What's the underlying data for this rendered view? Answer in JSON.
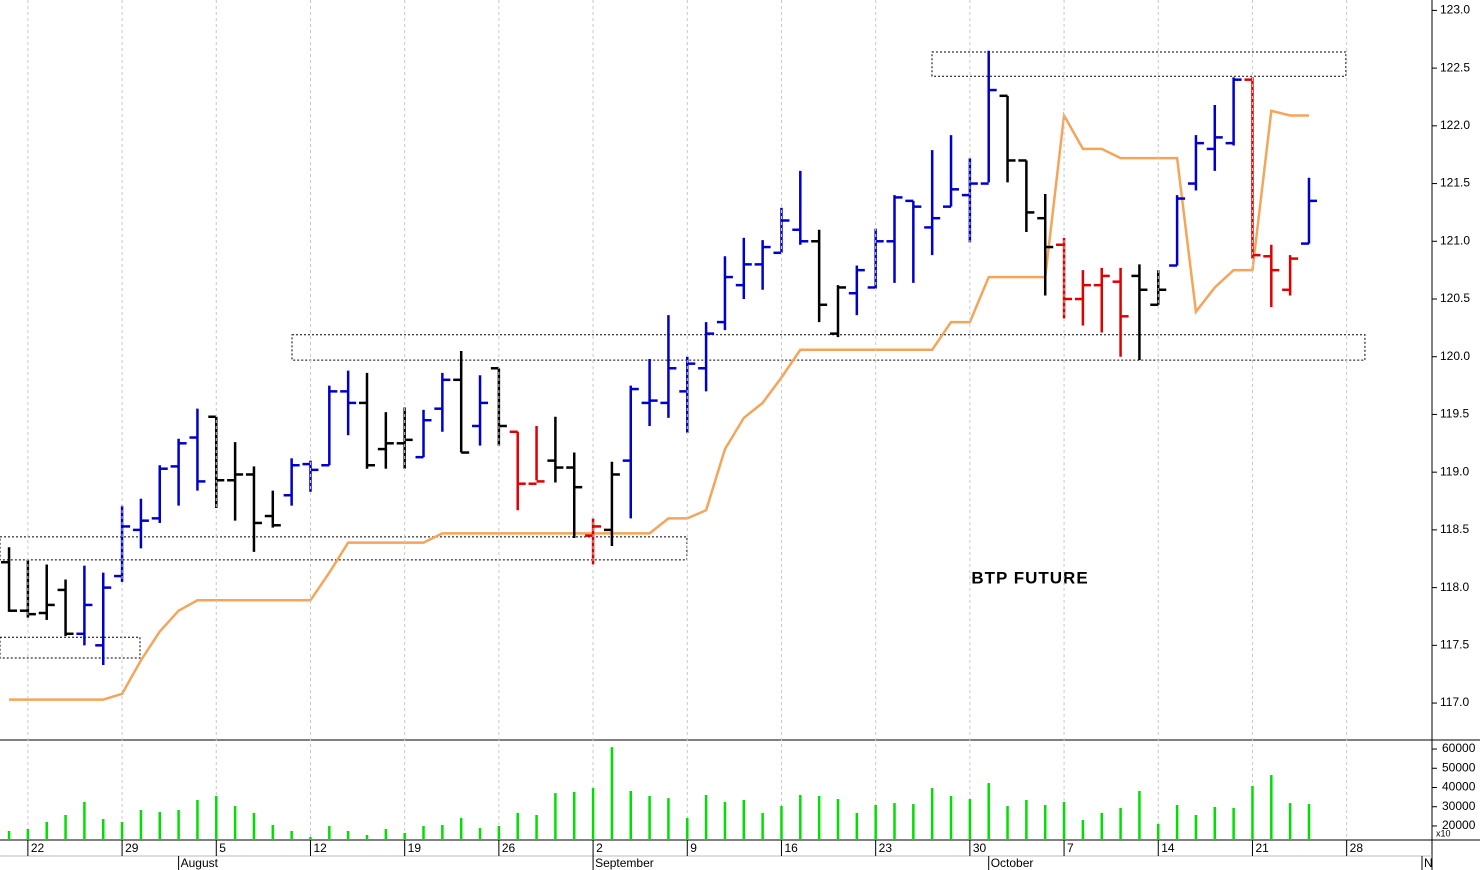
{
  "chart_data": [
    {
      "type": "ohlc",
      "annotation": "BTP FUTURE",
      "xlim": [
        -0.48,
        75.53
      ],
      "ylim": [
        116.68,
        123.09
      ],
      "yticks": [
        {
          "value": 117,
          "label": "117.0"
        },
        117.5,
        {
          "value": 118,
          "label": "118.0"
        },
        118.5,
        {
          "value": 119,
          "label": "119.0"
        },
        119.5,
        {
          "value": 120,
          "label": "120.0"
        },
        120.5,
        {
          "value": 121,
          "label": "121.0"
        },
        121.5,
        {
          "value": 122,
          "label": "122.0"
        },
        122.5,
        {
          "value": 123,
          "label": "123.0"
        }
      ],
      "open": [
        118.22,
        117.8,
        117.78,
        117.98,
        117.6,
        117.5,
        118.1,
        118.5,
        118.6,
        119.05,
        119.3,
        119.48,
        118.93,
        118.98,
        118.62,
        118.8,
        119.07,
        119.06,
        119.7,
        119.6,
        119.2,
        119.25,
        119.13,
        119.55,
        119.8,
        119.4,
        119.9,
        119.35,
        118.9,
        119.1,
        119.04,
        118.45,
        118.5,
        119.1,
        119.6,
        119.6,
        119.7,
        119.9,
        120.3,
        120.62,
        120.8,
        120.9,
        121.1,
        121.0,
        120.2,
        120.55,
        120.6,
        121.0,
        121.35,
        121.12,
        121.3,
        121.4,
        121.5,
        122.26,
        121.7,
        121.2,
        120.97,
        120.5,
        120.62,
        120.65,
        120.7,
        120.45,
        120.79,
        121.5,
        121.8,
        121.85,
        122.4,
        120.87,
        120.58,
        120.98
      ],
      "high": [
        118.35,
        118.24,
        118.2,
        118.07,
        118.19,
        118.13,
        118.71,
        118.77,
        119.06,
        119.29,
        119.55,
        119.48,
        119.26,
        119.05,
        118.84,
        119.12,
        119.1,
        119.75,
        119.88,
        119.86,
        119.52,
        119.56,
        119.54,
        119.86,
        120.05,
        119.84,
        119.9,
        119.35,
        119.4,
        119.48,
        119.17,
        118.6,
        119.09,
        119.75,
        119.98,
        120.36,
        120.0,
        120.3,
        120.87,
        121.03,
        121.01,
        121.29,
        121.61,
        121.1,
        120.62,
        120.79,
        121.11,
        121.4,
        121.35,
        121.79,
        121.92,
        121.72,
        122.65,
        122.26,
        121.7,
        121.41,
        121.03,
        120.75,
        120.77,
        120.77,
        120.8,
        120.75,
        121.4,
        121.92,
        122.18,
        122.42,
        122.42,
        120.97,
        120.88,
        121.55
      ],
      "low": [
        117.79,
        117.74,
        117.72,
        117.58,
        117.5,
        117.33,
        118.05,
        118.34,
        118.56,
        118.71,
        118.84,
        118.69,
        118.58,
        118.31,
        118.52,
        118.71,
        118.83,
        119.06,
        119.32,
        119.03,
        119.03,
        119.03,
        119.13,
        119.35,
        119.17,
        119.23,
        119.23,
        118.67,
        118.93,
        118.91,
        118.43,
        118.2,
        118.36,
        118.6,
        119.4,
        119.47,
        119.34,
        119.7,
        120.23,
        120.5,
        120.58,
        120.9,
        120.97,
        120.3,
        120.17,
        120.36,
        120.59,
        120.64,
        120.64,
        120.88,
        121.3,
        120.99,
        121.51,
        121.51,
        121.08,
        120.53,
        120.33,
        120.27,
        120.21,
        120.0,
        119.97,
        120.45,
        120.79,
        121.44,
        121.61,
        121.83,
        120.85,
        120.43,
        120.53,
        120.98
      ],
      "close": [
        117.8,
        117.77,
        117.85,
        117.6,
        117.85,
        118.0,
        118.53,
        118.58,
        119.03,
        119.25,
        118.92,
        118.93,
        118.98,
        118.56,
        118.54,
        119.06,
        119.02,
        119.7,
        119.6,
        119.06,
        119.25,
        119.28,
        119.45,
        119.8,
        119.17,
        119.6,
        119.4,
        118.9,
        118.92,
        119.04,
        118.87,
        118.53,
        118.98,
        119.72,
        119.62,
        119.9,
        119.94,
        120.2,
        120.69,
        120.8,
        120.95,
        121.18,
        121.0,
        120.45,
        120.6,
        120.75,
        121.0,
        121.38,
        121.3,
        121.2,
        121.45,
        121.5,
        122.31,
        121.7,
        121.25,
        120.95,
        120.5,
        120.62,
        120.7,
        120.35,
        120.58,
        120.58,
        121.37,
        121.85,
        121.9,
        122.4,
        120.88,
        120.75,
        120.85,
        121.35
      ],
      "colors": [
        "#000000",
        "#000000",
        "#000000",
        "#000000",
        "#0000cc",
        "#0000cc",
        "#0000cc",
        "#0000cc",
        "#0000cc",
        "#0000cc",
        "#0000cc",
        "#000000",
        "#000000",
        "#000000",
        "#000000",
        "#0000cc",
        "#0000cc",
        "#0000cc",
        "#0000cc",
        "#000000",
        "#000000",
        "#000000",
        "#0000cc",
        "#0000cc",
        "#000000",
        "#0000cc",
        "#000000",
        "#e00000",
        "#e00000",
        "#000000",
        "#000000",
        "#e00000",
        "#000000",
        "#0000cc",
        "#0000cc",
        "#0000cc",
        "#0000cc",
        "#0000cc",
        "#0000cc",
        "#0000cc",
        "#0000cc",
        "#0000cc",
        "#0000cc",
        "#000000",
        "#000000",
        "#0000cc",
        "#0000cc",
        "#0000cc",
        "#0000cc",
        "#0000cc",
        "#0000cc",
        "#0000cc",
        "#0000cc",
        "#000000",
        "#000000",
        "#000000",
        "#e00000",
        "#e00000",
        "#e00000",
        "#e00000",
        "#000000",
        "#000000",
        "#0000cc",
        "#0000cc",
        "#0000cc",
        "#0000cc",
        "#e00000",
        "#e00000",
        "#e00000",
        "#0000cc"
      ],
      "line": {
        "color": "#f5a55a",
        "values": [
          117.03,
          117.03,
          117.03,
          117.03,
          117.03,
          117.03,
          117.08,
          117.37,
          117.62,
          117.8,
          117.89,
          117.89,
          117.89,
          117.89,
          117.89,
          117.89,
          117.89,
          118.13,
          118.39,
          118.39,
          118.39,
          118.39,
          118.39,
          118.47,
          118.47,
          118.47,
          118.47,
          118.47,
          118.47,
          118.47,
          118.47,
          118.47,
          118.47,
          118.47,
          118.47,
          118.6,
          118.6,
          118.67,
          119.2,
          119.47,
          119.6,
          119.82,
          120.06,
          120.06,
          120.06,
          120.06,
          120.06,
          120.06,
          120.06,
          120.06,
          120.3,
          120.3,
          120.69,
          120.69,
          120.69,
          120.69,
          122.09,
          121.8,
          121.8,
          121.72,
          121.72,
          121.72,
          121.72,
          120.39,
          120.6,
          120.75,
          120.75,
          122.13,
          122.09,
          122.09
        ]
      },
      "zones": [
        {
          "x": [
            -0.48,
            6.95
          ],
          "y": [
            117.39,
            117.57
          ]
        },
        {
          "x": [
            -0.48,
            35.98
          ],
          "y": [
            118.24,
            118.44
          ]
        },
        {
          "x": [
            15.02,
            71.97
          ],
          "y": [
            119.97,
            120.19
          ]
        },
        {
          "x": [
            48.99,
            70.96
          ],
          "y": [
            122.43,
            122.64
          ]
        }
      ]
    },
    {
      "type": "bar",
      "color": "#00e000",
      "axis_note": "x10",
      "xlim": [
        -0.48,
        75.53
      ],
      "ylim": [
        12700,
        64700
      ],
      "yticks": [
        20000,
        30000,
        40000,
        50000,
        60000
      ],
      "values": [
        17400,
        18400,
        22100,
        25700,
        32500,
        23600,
        22100,
        28300,
        27300,
        28300,
        33500,
        35600,
        30400,
        26800,
        20500,
        17400,
        14300,
        20000,
        17400,
        15300,
        18400,
        16400,
        20000,
        20500,
        24200,
        18900,
        20000,
        26800,
        25700,
        37100,
        37700,
        39700,
        61000,
        38200,
        35600,
        34500,
        24200,
        36100,
        32500,
        33500,
        26800,
        30400,
        36100,
        35600,
        34000,
        26800,
        30900,
        31900,
        31400,
        39700,
        35600,
        34000,
        42300,
        30400,
        33500,
        30900,
        32500,
        23100,
        26800,
        29400,
        38200,
        21000,
        30900,
        25700,
        29900,
        29400,
        40800,
        46500,
        31900,
        31400
      ],
      "xticks": [
        {
          "value": 1,
          "label": "22"
        },
        {
          "value": 6,
          "label": "29"
        },
        {
          "value": 11,
          "label": "5"
        },
        {
          "value": 16,
          "label": "12"
        },
        {
          "value": 21,
          "label": "19"
        },
        {
          "value": 26,
          "label": "26"
        },
        {
          "value": 31,
          "label": "2"
        },
        {
          "value": 36,
          "label": "9"
        },
        {
          "value": 41,
          "label": "16"
        },
        {
          "value": 46,
          "label": "23"
        },
        {
          "value": 51,
          "label": "30"
        },
        {
          "value": 56,
          "label": "7"
        },
        {
          "value": 61,
          "label": "14"
        },
        {
          "value": 66,
          "label": "21"
        },
        {
          "value": 71,
          "label": "28"
        }
      ],
      "month_ticks": [
        {
          "value": 9,
          "label": "August"
        },
        {
          "value": 31,
          "label": "September"
        },
        {
          "value": 52,
          "label": "October"
        },
        {
          "value": 75,
          "label": "N"
        }
      ],
      "grid": true
    }
  ]
}
